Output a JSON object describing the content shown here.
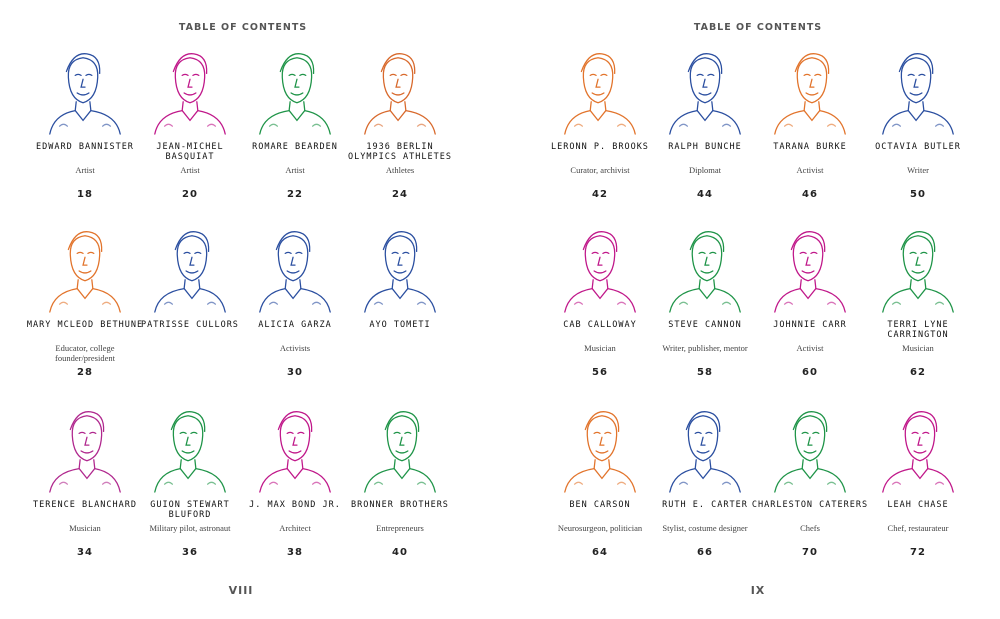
{
  "left_page": {
    "header": "TABLE OF CONTENTS",
    "folio": "VIII",
    "entries": [
      {
        "name": "Edward Bannister",
        "role": "Artist",
        "page": "18",
        "color": "#2b4fa0"
      },
      {
        "name": "Jean-Michel Basquiat",
        "role": "Artist",
        "page": "20",
        "color": "#c0188a"
      },
      {
        "name": "Romare Bearden",
        "role": "Artist",
        "page": "22",
        "color": "#1f9448"
      },
      {
        "name": "1936 Berlin Olympics Athletes",
        "role": "Athletes",
        "page": "24",
        "color": "#d8692c"
      },
      {
        "name": "Mary McLeod Bethune",
        "role": "Educator, college founder/president",
        "page": "28",
        "color": "#e2742c"
      },
      {
        "name": "Patrisse Cullors",
        "role": "",
        "page": "",
        "color": "#2b4fa0"
      },
      {
        "name": "Alicia Garza",
        "role": "Activists",
        "page": "30",
        "color": "#2b4fa0"
      },
      {
        "name": "Ayo Tometi",
        "role": "",
        "page": "",
        "color": "#2b4fa0"
      },
      {
        "name": "Terence Blanchard",
        "role": "Musician",
        "page": "34",
        "color": "#b0288e"
      },
      {
        "name": "Guion Stewart Bluford",
        "role": "Military pilot, astronaut",
        "page": "36",
        "color": "#1f9448"
      },
      {
        "name": "J. Max Bond Jr.",
        "role": "Architect",
        "page": "38",
        "color": "#c0188a"
      },
      {
        "name": "Bronner Brothers",
        "role": "Entrepreneurs",
        "page": "40",
        "color": "#1f9448"
      }
    ]
  },
  "right_page": {
    "header": "TABLE OF CONTENTS",
    "folio": "IX",
    "entries": [
      {
        "name": "LeRonn P. Brooks",
        "role": "Curator, archivist",
        "page": "42",
        "color": "#e2742c"
      },
      {
        "name": "Ralph Bunche",
        "role": "Diplomat",
        "page": "44",
        "color": "#2b4fa0"
      },
      {
        "name": "Tarana Burke",
        "role": "Activist",
        "page": "46",
        "color": "#e2742c"
      },
      {
        "name": "Octavia Butler",
        "role": "Writer",
        "page": "50",
        "color": "#2b4fa0"
      },
      {
        "name": "Cab Calloway",
        "role": "Musician",
        "page": "56",
        "color": "#c0188a"
      },
      {
        "name": "Steve Cannon",
        "role": "Writer, publisher, mentor",
        "page": "58",
        "color": "#1f9448"
      },
      {
        "name": "Johnnie Carr",
        "role": "Activist",
        "page": "60",
        "color": "#c0188a"
      },
      {
        "name": "Terri Lyne Carrington",
        "role": "Musician",
        "page": "62",
        "color": "#1f9448"
      },
      {
        "name": "Ben Carson",
        "role": "Neurosurgeon, politician",
        "page": "64",
        "color": "#e2742c"
      },
      {
        "name": "Ruth E. Carter",
        "role": "Stylist, costume designer",
        "page": "66",
        "color": "#2b4fa0"
      },
      {
        "name": "Charleston Caterers",
        "role": "Chefs",
        "page": "70",
        "color": "#1f9448"
      },
      {
        "name": "Leah Chase",
        "role": "Chef, restaurateur",
        "page": "72",
        "color": "#c0188a"
      }
    ]
  }
}
